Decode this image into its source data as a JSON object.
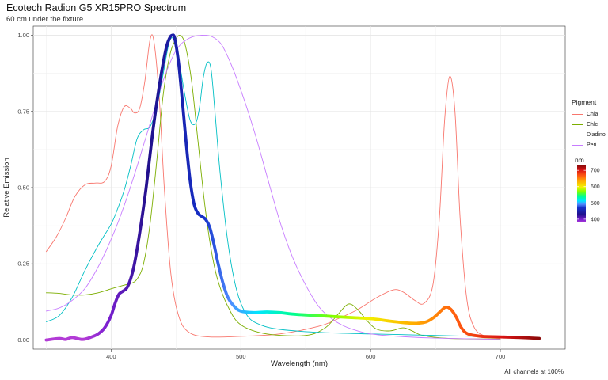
{
  "chart_data": {
    "type": "line",
    "title": "Ecotech Radion G5 XR15PRO Spectrum",
    "subtitle": "60 cm under the fixture",
    "xlabel": "Wavelength (nm)",
    "ylabel": "Relative Emission",
    "caption": "All channels at 100%",
    "xlim": [
      340,
      750
    ],
    "ylim": [
      -0.03,
      1.03
    ],
    "x_ticks": [
      400,
      500,
      600,
      700
    ],
    "y_ticks": [
      0.0,
      0.25,
      0.5,
      0.75,
      1.0
    ],
    "y_tick_labels": [
      "0.00",
      "0.25",
      "0.50",
      "0.75",
      "1.00"
    ],
    "grid": true,
    "legend": {
      "title": "Pigment",
      "placement": "right",
      "entries": [
        "Chla",
        "Chlc",
        "Diadino",
        "Peri"
      ]
    },
    "colorbar": {
      "title": "nm",
      "ticks": [
        400,
        500,
        600,
        700
      ],
      "range": [
        380,
        730
      ],
      "placement": "right"
    },
    "series": [
      {
        "name": "Chla",
        "color": "#f8766d",
        "width": 0.9,
        "points": [
          [
            350,
            0.29
          ],
          [
            358,
            0.34
          ],
          [
            365,
            0.4
          ],
          [
            372,
            0.47
          ],
          [
            380,
            0.51
          ],
          [
            388,
            0.515
          ],
          [
            395,
            0.52
          ],
          [
            400,
            0.57
          ],
          [
            405,
            0.7
          ],
          [
            410,
            0.765
          ],
          [
            415,
            0.76
          ],
          [
            418,
            0.745
          ],
          [
            422,
            0.76
          ],
          [
            426,
            0.85
          ],
          [
            430,
            0.985
          ],
          [
            433,
            0.98
          ],
          [
            437,
            0.8
          ],
          [
            441,
            0.5
          ],
          [
            446,
            0.22
          ],
          [
            452,
            0.08
          ],
          [
            460,
            0.025
          ],
          [
            475,
            0.01
          ],
          [
            500,
            0.012
          ],
          [
            530,
            0.02
          ],
          [
            560,
            0.045
          ],
          [
            575,
            0.07
          ],
          [
            590,
            0.1
          ],
          [
            605,
            0.14
          ],
          [
            618,
            0.165
          ],
          [
            626,
            0.155
          ],
          [
            634,
            0.13
          ],
          [
            641,
            0.12
          ],
          [
            648,
            0.18
          ],
          [
            653,
            0.4
          ],
          [
            657,
            0.72
          ],
          [
            661,
            0.865
          ],
          [
            665,
            0.75
          ],
          [
            669,
            0.4
          ],
          [
            674,
            0.14
          ],
          [
            680,
            0.04
          ],
          [
            690,
            0.01
          ],
          [
            700,
            0.005
          ]
        ]
      },
      {
        "name": "Chlc",
        "color": "#7cae00",
        "width": 0.9,
        "points": [
          [
            350,
            0.155
          ],
          [
            360,
            0.153
          ],
          [
            370,
            0.148
          ],
          [
            380,
            0.148
          ],
          [
            390,
            0.155
          ],
          [
            400,
            0.168
          ],
          [
            410,
            0.18
          ],
          [
            415,
            0.185
          ],
          [
            420,
            0.2
          ],
          [
            425,
            0.25
          ],
          [
            430,
            0.38
          ],
          [
            435,
            0.58
          ],
          [
            440,
            0.8
          ],
          [
            445,
            0.93
          ],
          [
            449,
            0.98
          ],
          [
            453,
            1.0
          ],
          [
            457,
            0.97
          ],
          [
            462,
            0.85
          ],
          [
            467,
            0.65
          ],
          [
            472,
            0.45
          ],
          [
            477,
            0.3
          ],
          [
            482,
            0.2
          ],
          [
            490,
            0.11
          ],
          [
            500,
            0.05
          ],
          [
            520,
            0.02
          ],
          [
            550,
            0.015
          ],
          [
            565,
            0.04
          ],
          [
            575,
            0.085
          ],
          [
            583,
            0.118
          ],
          [
            590,
            0.1
          ],
          [
            598,
            0.06
          ],
          [
            605,
            0.035
          ],
          [
            615,
            0.03
          ],
          [
            625,
            0.04
          ],
          [
            632,
            0.03
          ],
          [
            640,
            0.015
          ],
          [
            660,
            0.005
          ],
          [
            700,
            0.003
          ]
        ]
      },
      {
        "name": "Diadino",
        "color": "#00bfc4",
        "width": 0.9,
        "points": [
          [
            350,
            0.06
          ],
          [
            360,
            0.08
          ],
          [
            370,
            0.14
          ],
          [
            380,
            0.23
          ],
          [
            390,
            0.31
          ],
          [
            400,
            0.38
          ],
          [
            405,
            0.43
          ],
          [
            410,
            0.49
          ],
          [
            415,
            0.57
          ],
          [
            420,
            0.66
          ],
          [
            425,
            0.69
          ],
          [
            430,
            0.7
          ],
          [
            435,
            0.76
          ],
          [
            440,
            0.87
          ],
          [
            445,
            0.98
          ],
          [
            449,
            0.98
          ],
          [
            453,
            0.9
          ],
          [
            457,
            0.8
          ],
          [
            461,
            0.72
          ],
          [
            465,
            0.71
          ],
          [
            468,
            0.76
          ],
          [
            471,
            0.86
          ],
          [
            474,
            0.91
          ],
          [
            477,
            0.89
          ],
          [
            480,
            0.75
          ],
          [
            484,
            0.55
          ],
          [
            490,
            0.32
          ],
          [
            497,
            0.16
          ],
          [
            505,
            0.08
          ],
          [
            515,
            0.05
          ],
          [
            530,
            0.035
          ],
          [
            560,
            0.025
          ],
          [
            600,
            0.02
          ],
          [
            650,
            0.015
          ],
          [
            700,
            0.01
          ]
        ]
      },
      {
        "name": "Peri",
        "color": "#c77cff",
        "width": 0.9,
        "points": [
          [
            350,
            0.095
          ],
          [
            360,
            0.105
          ],
          [
            370,
            0.13
          ],
          [
            380,
            0.17
          ],
          [
            390,
            0.24
          ],
          [
            400,
            0.33
          ],
          [
            410,
            0.44
          ],
          [
            420,
            0.57
          ],
          [
            430,
            0.71
          ],
          [
            440,
            0.85
          ],
          [
            450,
            0.95
          ],
          [
            460,
            0.99
          ],
          [
            470,
            1.0
          ],
          [
            478,
            0.995
          ],
          [
            485,
            0.97
          ],
          [
            492,
            0.91
          ],
          [
            500,
            0.82
          ],
          [
            510,
            0.69
          ],
          [
            520,
            0.54
          ],
          [
            530,
            0.39
          ],
          [
            540,
            0.27
          ],
          [
            550,
            0.18
          ],
          [
            560,
            0.11
          ],
          [
            570,
            0.07
          ],
          [
            580,
            0.045
          ],
          [
            590,
            0.03
          ],
          [
            600,
            0.02
          ],
          [
            620,
            0.012
          ],
          [
            650,
            0.006
          ],
          [
            700,
            0.002
          ]
        ]
      },
      {
        "name": "XR15PRO",
        "color": "gradient",
        "width": 3.8,
        "points": [
          [
            350,
            0.0
          ],
          [
            360,
            0.005
          ],
          [
            365,
            0.002
          ],
          [
            370,
            0.008
          ],
          [
            378,
            0.002
          ],
          [
            385,
            0.01
          ],
          [
            390,
            0.02
          ],
          [
            395,
            0.04
          ],
          [
            400,
            0.08
          ],
          [
            403,
            0.12
          ],
          [
            406,
            0.15
          ],
          [
            409,
            0.16
          ],
          [
            412,
            0.17
          ],
          [
            415,
            0.2
          ],
          [
            418,
            0.25
          ],
          [
            422,
            0.35
          ],
          [
            427,
            0.5
          ],
          [
            432,
            0.68
          ],
          [
            437,
            0.83
          ],
          [
            442,
            0.95
          ],
          [
            445,
            0.99
          ],
          [
            447,
            1.0
          ],
          [
            449,
            0.99
          ],
          [
            452,
            0.91
          ],
          [
            455,
            0.78
          ],
          [
            458,
            0.64
          ],
          [
            461,
            0.52
          ],
          [
            464,
            0.445
          ],
          [
            467,
            0.415
          ],
          [
            470,
            0.405
          ],
          [
            473,
            0.395
          ],
          [
            476,
            0.37
          ],
          [
            479,
            0.32
          ],
          [
            482,
            0.26
          ],
          [
            486,
            0.19
          ],
          [
            490,
            0.14
          ],
          [
            495,
            0.11
          ],
          [
            500,
            0.095
          ],
          [
            510,
            0.09
          ],
          [
            520,
            0.092
          ],
          [
            530,
            0.09
          ],
          [
            540,
            0.085
          ],
          [
            560,
            0.08
          ],
          [
            580,
            0.075
          ],
          [
            600,
            0.07
          ],
          [
            615,
            0.062
          ],
          [
            628,
            0.056
          ],
          [
            636,
            0.055
          ],
          [
            643,
            0.06
          ],
          [
            649,
            0.075
          ],
          [
            654,
            0.095
          ],
          [
            658,
            0.108
          ],
          [
            662,
            0.1
          ],
          [
            666,
            0.075
          ],
          [
            670,
            0.04
          ],
          [
            675,
            0.02
          ],
          [
            685,
            0.012
          ],
          [
            700,
            0.01
          ],
          [
            715,
            0.008
          ],
          [
            730,
            0.005
          ]
        ]
      }
    ]
  }
}
